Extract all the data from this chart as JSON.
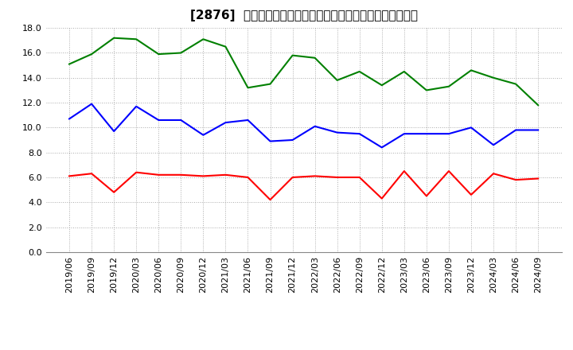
{
  "title": "[2876]  売上債権回転率、買入債務回転率、在庫回転率の推移",
  "dates": [
    "2019/06",
    "2019/09",
    "2019/12",
    "2020/03",
    "2020/06",
    "2020/09",
    "2020/12",
    "2021/03",
    "2021/06",
    "2021/09",
    "2021/12",
    "2022/03",
    "2022/06",
    "2022/09",
    "2022/12",
    "2023/03",
    "2023/06",
    "2023/09",
    "2023/12",
    "2024/03",
    "2024/06",
    "2024/09"
  ],
  "receivables_turnover": [
    6.1,
    6.3,
    4.8,
    6.4,
    6.2,
    6.2,
    6.1,
    6.2,
    6.0,
    4.2,
    6.0,
    6.1,
    6.0,
    6.0,
    4.3,
    6.5,
    4.5,
    6.5,
    4.6,
    6.3,
    5.8,
    5.9
  ],
  "payables_turnover": [
    10.7,
    11.9,
    9.7,
    11.7,
    10.6,
    10.6,
    9.4,
    10.4,
    10.6,
    8.9,
    9.0,
    10.1,
    9.6,
    9.5,
    8.4,
    9.5,
    9.5,
    9.5,
    10.0,
    8.6,
    9.8,
    9.8
  ],
  "inventory_turnover": [
    15.1,
    15.9,
    17.2,
    17.1,
    15.9,
    16.0,
    17.1,
    16.5,
    13.2,
    13.5,
    15.8,
    15.6,
    13.8,
    14.5,
    13.4,
    14.5,
    13.0,
    13.3,
    14.6,
    14.0,
    13.5,
    11.8
  ],
  "receivables_color": "#ff0000",
  "payables_color": "#0000ff",
  "inventory_color": "#008000",
  "legend_labels": [
    "売上債権回転率",
    "買入債務回転率",
    "在庫回転率"
  ],
  "ylim": [
    0.0,
    18.0
  ],
  "yticks": [
    0.0,
    2.0,
    4.0,
    6.0,
    8.0,
    10.0,
    12.0,
    14.0,
    16.0,
    18.0
  ],
  "background_color": "#ffffff",
  "grid_color": "#aaaaaa",
  "title_fontsize": 11,
  "axis_fontsize": 8,
  "legend_fontsize": 9
}
